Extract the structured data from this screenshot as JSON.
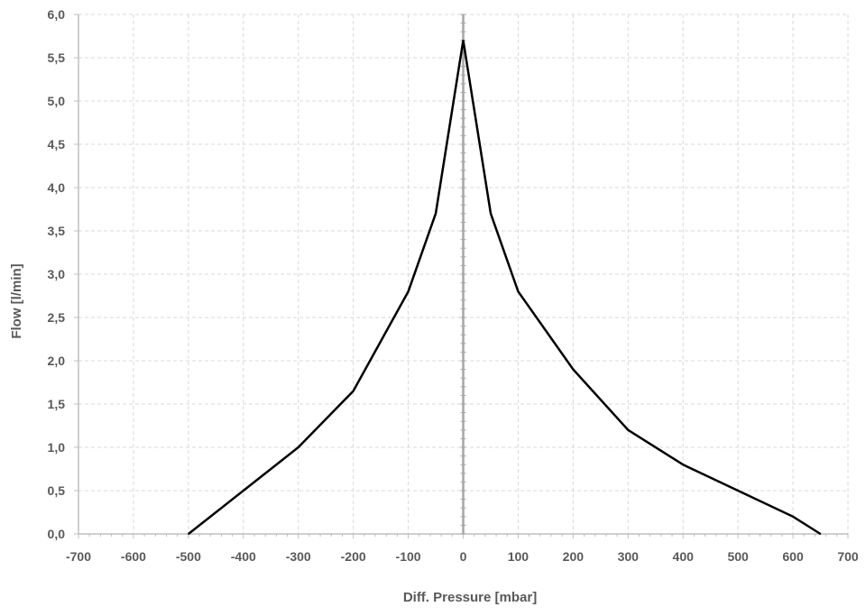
{
  "chart_data": {
    "type": "line",
    "title": "",
    "xlabel": "Diff. Pressure [mbar]",
    "ylabel": "Flow [l/min]",
    "xlim": [
      -700,
      700
    ],
    "ylim": [
      0,
      6
    ],
    "x_ticks": [
      -700,
      -600,
      -500,
      -400,
      -300,
      -200,
      -100,
      0,
      100,
      200,
      300,
      400,
      500,
      600,
      700
    ],
    "x_tick_labels": [
      "-700",
      "-600",
      "-500",
      "-400",
      "-300",
      "-200",
      "-100",
      "0",
      "100",
      "200",
      "300",
      "400",
      "500",
      "600",
      "700"
    ],
    "y_ticks": [
      0,
      0.5,
      1,
      1.5,
      2,
      2.5,
      3,
      3.5,
      4,
      4.5,
      5,
      5.5,
      6
    ],
    "y_tick_labels": [
      "0,0",
      "0,5",
      "1,0",
      "1,5",
      "2,0",
      "2,5",
      "3,0",
      "3,5",
      "4,0",
      "4,5",
      "5,0",
      "5,5",
      "6,0"
    ],
    "grid": true,
    "legend": "none",
    "series": [
      {
        "x": [
          -500,
          -400,
          -300,
          -200,
          -100,
          -50,
          0,
          50,
          100,
          200,
          300,
          400,
          500,
          600,
          650
        ],
        "y": [
          0.0,
          0.5,
          1.0,
          1.65,
          2.8,
          3.7,
          5.7,
          3.7,
          2.8,
          1.9,
          1.2,
          0.8,
          0.5,
          0.2,
          0.0
        ]
      }
    ],
    "colors": {
      "series": "#000000",
      "axis": "#bfbfbf",
      "zero_line": "#a6a6a6",
      "grid": "#d9d9d9",
      "text": "#595959"
    }
  }
}
